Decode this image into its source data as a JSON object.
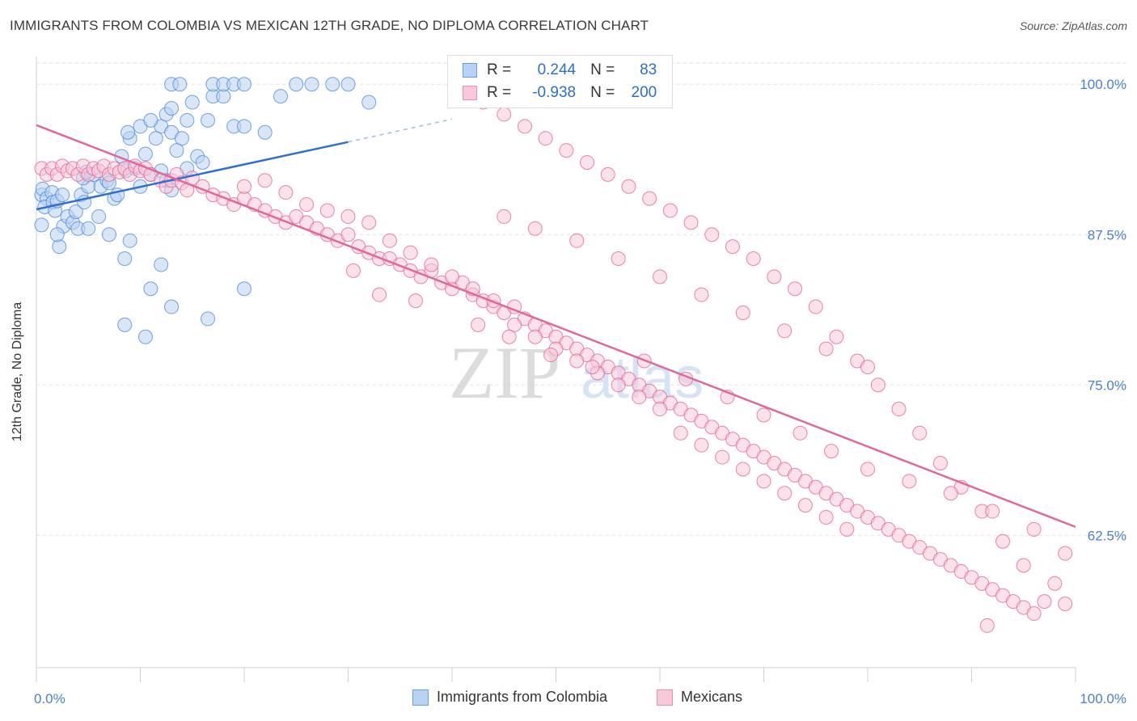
{
  "title": "IMMIGRANTS FROM COLOMBIA VS MEXICAN 12TH GRADE, NO DIPLOMA CORRELATION CHART",
  "source": "Source: ZipAtlas.com",
  "watermark": {
    "zip": "ZIP",
    "atlas": "atlas"
  },
  "legend_stats": {
    "r_label": "R =",
    "n_label": "N =",
    "rows": [
      {
        "r": "0.244",
        "n": "83",
        "color": "#6b9fe0",
        "fill": "#b8d2f3"
      },
      {
        "r": "-0.938",
        "n": "200",
        "color": "#ee8fb0",
        "fill": "#f8c9d8"
      }
    ]
  },
  "chart_data": {
    "type": "scatter",
    "title": "IMMIGRANTS FROM COLOMBIA VS MEXICAN 12TH GRADE, NO DIPLOMA CORRELATION CHART",
    "xlabel": "",
    "ylabel": "12th Grade, No Diploma",
    "xlim": [
      0,
      100
    ],
    "ylim": [
      51.5,
      102.3
    ],
    "x_tick_labels": [
      "0.0%",
      "100.0%"
    ],
    "y_ticks": [
      {
        "value": 100.0,
        "label": "100.0%"
      },
      {
        "value": 87.5,
        "label": "87.5%"
      },
      {
        "value": 75.0,
        "label": "75.0%"
      },
      {
        "value": 62.5,
        "label": "62.5%"
      }
    ],
    "grid": true,
    "legend": "bottom",
    "series": [
      {
        "name": "Immigrants from Colombia",
        "color": "#4a86d6",
        "fill": "#b8d2f3",
        "trend": {
          "x0": 0,
          "y0": 89.6,
          "x1": 30,
          "y1": 95.2,
          "dash_x1": 40,
          "dash_y1": 97.1
        },
        "points": [
          [
            0.5,
            90.8
          ],
          [
            0.6,
            91.3
          ],
          [
            1.0,
            90.5
          ],
          [
            0.8,
            89.8
          ],
          [
            0.5,
            88.3
          ],
          [
            1.5,
            91.0
          ],
          [
            1.6,
            90.2
          ],
          [
            1.8,
            89.5
          ],
          [
            2.0,
            90.3
          ],
          [
            2.5,
            90.8
          ],
          [
            2.2,
            86.5
          ],
          [
            2.6,
            88.2
          ],
          [
            3.0,
            89.0
          ],
          [
            3.5,
            88.5
          ],
          [
            3.8,
            89.4
          ],
          [
            4.0,
            88.0
          ],
          [
            4.3,
            90.8
          ],
          [
            4.6,
            90.2
          ],
          [
            5.0,
            91.5
          ],
          [
            5.5,
            92.5
          ],
          [
            4.5,
            92.2
          ],
          [
            4.8,
            92.7
          ],
          [
            6.2,
            91.5
          ],
          [
            6.8,
            92.0
          ],
          [
            7.0,
            91.8
          ],
          [
            7.5,
            90.5
          ],
          [
            7.8,
            90.8
          ],
          [
            8.2,
            94.0
          ],
          [
            8.6,
            92.8
          ],
          [
            9.5,
            93.0
          ],
          [
            10.0,
            91.5
          ],
          [
            10.5,
            94.2
          ],
          [
            11.0,
            92.5
          ],
          [
            12.0,
            92.8
          ],
          [
            12.5,
            92.0
          ],
          [
            13.0,
            91.2
          ],
          [
            14.5,
            93.0
          ],
          [
            15.5,
            94.0
          ],
          [
            16.0,
            93.5
          ],
          [
            9.0,
            95.5
          ],
          [
            8.8,
            96.0
          ],
          [
            12.0,
            96.5
          ],
          [
            13.0,
            96.0
          ],
          [
            14.0,
            95.5
          ],
          [
            13.5,
            94.5
          ],
          [
            11.5,
            95.5
          ],
          [
            14.5,
            97.0
          ],
          [
            12.5,
            97.5
          ],
          [
            10.0,
            96.5
          ],
          [
            11.0,
            97.0
          ],
          [
            15.0,
            98.5
          ],
          [
            16.5,
            97.0
          ],
          [
            13.0,
            98.0
          ],
          [
            17.0,
            99.0
          ],
          [
            18.0,
            99.0
          ],
          [
            19.0,
            96.5
          ],
          [
            20.0,
            96.5
          ],
          [
            22.0,
            96.0
          ],
          [
            23.5,
            99.0
          ],
          [
            25.0,
            100.0
          ],
          [
            26.5,
            100.0
          ],
          [
            28.5,
            100.0
          ],
          [
            30.0,
            100.0
          ],
          [
            32.0,
            98.5
          ],
          [
            13.0,
            100.0
          ],
          [
            13.8,
            100.0
          ],
          [
            17.0,
            100.0
          ],
          [
            18.0,
            100.0
          ],
          [
            19.0,
            100.0
          ],
          [
            20.0,
            100.0
          ],
          [
            2.0,
            87.5
          ],
          [
            5.0,
            88.0
          ],
          [
            6.0,
            89.0
          ],
          [
            7.0,
            87.5
          ],
          [
            8.5,
            85.5
          ],
          [
            9.0,
            87.0
          ],
          [
            11.0,
            83.0
          ],
          [
            12.0,
            85.0
          ],
          [
            16.5,
            80.5
          ],
          [
            20.0,
            83.0
          ],
          [
            13.0,
            81.5
          ],
          [
            8.5,
            80.0
          ],
          [
            10.5,
            79.0
          ]
        ]
      },
      {
        "name": "Mexicans",
        "color": "#e05f92",
        "fill": "#f8c9d8",
        "trend": {
          "x0": 0,
          "y0": 96.6,
          "x1": 100,
          "y1": 63.2
        },
        "points": [
          [
            0.5,
            93.0
          ],
          [
            1.0,
            92.5
          ],
          [
            1.5,
            93.0
          ],
          [
            2.0,
            92.5
          ],
          [
            2.5,
            93.2
          ],
          [
            3.0,
            92.8
          ],
          [
            3.5,
            93.0
          ],
          [
            4.0,
            92.5
          ],
          [
            4.5,
            93.2
          ],
          [
            5.0,
            92.5
          ],
          [
            5.5,
            93.0
          ],
          [
            6.0,
            92.8
          ],
          [
            6.5,
            93.2
          ],
          [
            7.0,
            92.5
          ],
          [
            7.5,
            93.0
          ],
          [
            8.0,
            92.7
          ],
          [
            8.5,
            93.0
          ],
          [
            9.0,
            92.5
          ],
          [
            9.5,
            93.2
          ],
          [
            10.0,
            92.8
          ],
          [
            10.5,
            93.0
          ],
          [
            11.0,
            92.5
          ],
          [
            12.0,
            92.0
          ],
          [
            12.5,
            91.5
          ],
          [
            13.0,
            92.0
          ],
          [
            13.5,
            92.5
          ],
          [
            14.0,
            91.8
          ],
          [
            14.5,
            91.2
          ],
          [
            15.0,
            92.2
          ],
          [
            16.0,
            91.5
          ],
          [
            17.0,
            90.8
          ],
          [
            18.0,
            90.5
          ],
          [
            19.0,
            90.0
          ],
          [
            20.0,
            90.5
          ],
          [
            21.0,
            90.0
          ],
          [
            22.0,
            89.5
          ],
          [
            23.0,
            89.0
          ],
          [
            24.0,
            88.5
          ],
          [
            25.0,
            89.0
          ],
          [
            26.0,
            88.5
          ],
          [
            27.0,
            88.0
          ],
          [
            28.0,
            87.5
          ],
          [
            29.0,
            87.0
          ],
          [
            30.0,
            87.5
          ],
          [
            31.0,
            86.5
          ],
          [
            32.0,
            86.0
          ],
          [
            33.0,
            85.5
          ],
          [
            34.0,
            85.5
          ],
          [
            35.0,
            85.0
          ],
          [
            36.0,
            84.5
          ],
          [
            37.0,
            84.0
          ],
          [
            38.0,
            84.5
          ],
          [
            39.0,
            83.5
          ],
          [
            40.0,
            83.0
          ],
          [
            41.0,
            83.5
          ],
          [
            42.0,
            82.5
          ],
          [
            43.0,
            82.0
          ],
          [
            44.0,
            81.5
          ],
          [
            45.0,
            81.0
          ],
          [
            46.0,
            81.5
          ],
          [
            47.0,
            80.5
          ],
          [
            48.0,
            80.0
          ],
          [
            49.0,
            79.5
          ],
          [
            50.0,
            79.0
          ],
          [
            51.0,
            78.5
          ],
          [
            52.0,
            78.0
          ],
          [
            53.0,
            77.5
          ],
          [
            54.0,
            77.0
          ],
          [
            55.0,
            76.5
          ],
          [
            56.0,
            76.0
          ],
          [
            57.0,
            75.5
          ],
          [
            58.0,
            75.0
          ],
          [
            59.0,
            74.5
          ],
          [
            60.0,
            74.0
          ],
          [
            61.0,
            73.5
          ],
          [
            62.0,
            73.0
          ],
          [
            63.0,
            72.5
          ],
          [
            64.0,
            72.0
          ],
          [
            65.0,
            71.5
          ],
          [
            66.0,
            71.0
          ],
          [
            67.0,
            70.5
          ],
          [
            68.0,
            70.0
          ],
          [
            69.0,
            69.5
          ],
          [
            70.0,
            69.0
          ],
          [
            71.0,
            68.5
          ],
          [
            72.0,
            68.0
          ],
          [
            73.0,
            67.5
          ],
          [
            74.0,
            67.0
          ],
          [
            75.0,
            66.5
          ],
          [
            76.0,
            66.0
          ],
          [
            77.0,
            65.5
          ],
          [
            78.0,
            65.0
          ],
          [
            79.0,
            64.5
          ],
          [
            80.0,
            64.0
          ],
          [
            81.0,
            63.5
          ],
          [
            82.0,
            63.0
          ],
          [
            83.0,
            62.5
          ],
          [
            84.0,
            62.0
          ],
          [
            85.0,
            61.5
          ],
          [
            86.0,
            61.0
          ],
          [
            87.0,
            60.5
          ],
          [
            88.0,
            60.0
          ],
          [
            89.0,
            59.5
          ],
          [
            90.0,
            59.0
          ],
          [
            91.0,
            58.5
          ],
          [
            92.0,
            58.0
          ],
          [
            93.0,
            57.5
          ],
          [
            94.0,
            57.0
          ],
          [
            95.0,
            56.5
          ],
          [
            96.0,
            56.0
          ],
          [
            97.0,
            57.0
          ],
          [
            98.0,
            58.5
          ],
          [
            99.0,
            56.8
          ],
          [
            95.0,
            60.0
          ],
          [
            93.0,
            62.0
          ],
          [
            91.0,
            64.5
          ],
          [
            89.0,
            66.5
          ],
          [
            87.0,
            68.5
          ],
          [
            85.0,
            71.0
          ],
          [
            83.0,
            73.0
          ],
          [
            81.0,
            75.0
          ],
          [
            79.0,
            77.0
          ],
          [
            77.0,
            79.0
          ],
          [
            75.0,
            81.5
          ],
          [
            73.0,
            83.0
          ],
          [
            71.0,
            84.0
          ],
          [
            69.0,
            85.5
          ],
          [
            67.0,
            86.5
          ],
          [
            65.0,
            87.5
          ],
          [
            63.0,
            88.5
          ],
          [
            61.0,
            89.5
          ],
          [
            59.0,
            90.5
          ],
          [
            57.0,
            91.5
          ],
          [
            55.0,
            92.5
          ],
          [
            53.0,
            93.5
          ],
          [
            51.0,
            94.5
          ],
          [
            49.0,
            95.5
          ],
          [
            47.0,
            96.5
          ],
          [
            45.0,
            97.5
          ],
          [
            43.0,
            98.5
          ],
          [
            20.0,
            91.5
          ],
          [
            22.0,
            92.0
          ],
          [
            24.0,
            91.0
          ],
          [
            26.0,
            90.0
          ],
          [
            28.0,
            89.5
          ],
          [
            30.0,
            89.0
          ],
          [
            32.0,
            88.5
          ],
          [
            34.0,
            87.0
          ],
          [
            36.0,
            86.0
          ],
          [
            38.0,
            85.0
          ],
          [
            40.0,
            84.0
          ],
          [
            42.0,
            83.0
          ],
          [
            44.0,
            82.0
          ],
          [
            46.0,
            80.0
          ],
          [
            48.0,
            79.0
          ],
          [
            50.0,
            78.0
          ],
          [
            52.0,
            77.0
          ],
          [
            54.0,
            76.0
          ],
          [
            56.0,
            75.0
          ],
          [
            58.0,
            74.0
          ],
          [
            60.0,
            73.0
          ],
          [
            62.0,
            71.0
          ],
          [
            64.0,
            70.0
          ],
          [
            66.0,
            69.0
          ],
          [
            68.0,
            68.0
          ],
          [
            70.0,
            67.0
          ],
          [
            72.0,
            66.0
          ],
          [
            74.0,
            65.0
          ],
          [
            76.0,
            64.0
          ],
          [
            78.0,
            63.0
          ],
          [
            30.5,
            84.5
          ],
          [
            33.0,
            82.5
          ],
          [
            36.5,
            82.0
          ],
          [
            42.5,
            80.0
          ],
          [
            45.5,
            79.0
          ],
          [
            49.5,
            77.5
          ],
          [
            53.5,
            76.5
          ],
          [
            58.5,
            77.0
          ],
          [
            62.5,
            75.5
          ],
          [
            66.5,
            74.0
          ],
          [
            70.0,
            72.5
          ],
          [
            73.5,
            71.0
          ],
          [
            76.5,
            69.5
          ],
          [
            80.0,
            68.0
          ],
          [
            84.0,
            67.0
          ],
          [
            88.0,
            66.0
          ],
          [
            92.0,
            64.5
          ],
          [
            96.0,
            63.0
          ],
          [
            99.0,
            61.0
          ],
          [
            91.5,
            55.0
          ],
          [
            45.0,
            89.0
          ],
          [
            48.0,
            88.0
          ],
          [
            52.0,
            87.0
          ],
          [
            56.0,
            85.5
          ],
          [
            60.0,
            84.0
          ],
          [
            64.0,
            82.5
          ],
          [
            68.0,
            81.0
          ],
          [
            72.0,
            79.5
          ],
          [
            76.0,
            78.0
          ],
          [
            80.0,
            76.5
          ]
        ]
      }
    ]
  }
}
